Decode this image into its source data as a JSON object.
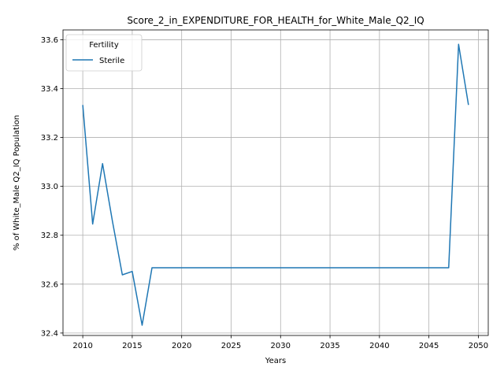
{
  "chart_data": {
    "type": "line",
    "title": "Score_2_in_EXPENDITURE_FOR_HEALTH_for_White_Male_Q2_IQ",
    "xlabel": "Years",
    "ylabel": "% of White_Male Q2_IQ Population",
    "xlim": [
      2008,
      2051
    ],
    "ylim": [
      32.39,
      33.64
    ],
    "xticks": [
      2010,
      2015,
      2020,
      2025,
      2030,
      2035,
      2040,
      2045,
      2050
    ],
    "yticks": [
      32.4,
      32.6,
      32.8,
      33.0,
      33.2,
      33.4,
      33.6
    ],
    "grid": true,
    "legend": {
      "title": "Fertility",
      "placement": "top-left"
    },
    "series": [
      {
        "name": "Sterile",
        "color": "#1f77b4",
        "x": [
          2010,
          2011,
          2012,
          2013,
          2014,
          2015,
          2016,
          2017,
          2018,
          2019,
          2020,
          2021,
          2022,
          2023,
          2024,
          2025,
          2026,
          2027,
          2028,
          2029,
          2030,
          2031,
          2032,
          2033,
          2034,
          2035,
          2036,
          2037,
          2038,
          2039,
          2040,
          2041,
          2042,
          2043,
          2044,
          2045,
          2046,
          2047,
          2048,
          2049
        ],
        "y": [
          33.333,
          32.846,
          33.093,
          32.857,
          32.638,
          32.652,
          32.432,
          32.667,
          32.667,
          32.667,
          32.667,
          32.667,
          32.667,
          32.667,
          32.667,
          32.667,
          32.667,
          32.667,
          32.667,
          32.667,
          32.667,
          32.667,
          32.667,
          32.667,
          32.667,
          32.667,
          32.667,
          32.667,
          32.667,
          32.667,
          32.667,
          32.667,
          32.667,
          32.667,
          32.667,
          32.667,
          32.667,
          32.667,
          33.581,
          33.333
        ]
      }
    ]
  }
}
